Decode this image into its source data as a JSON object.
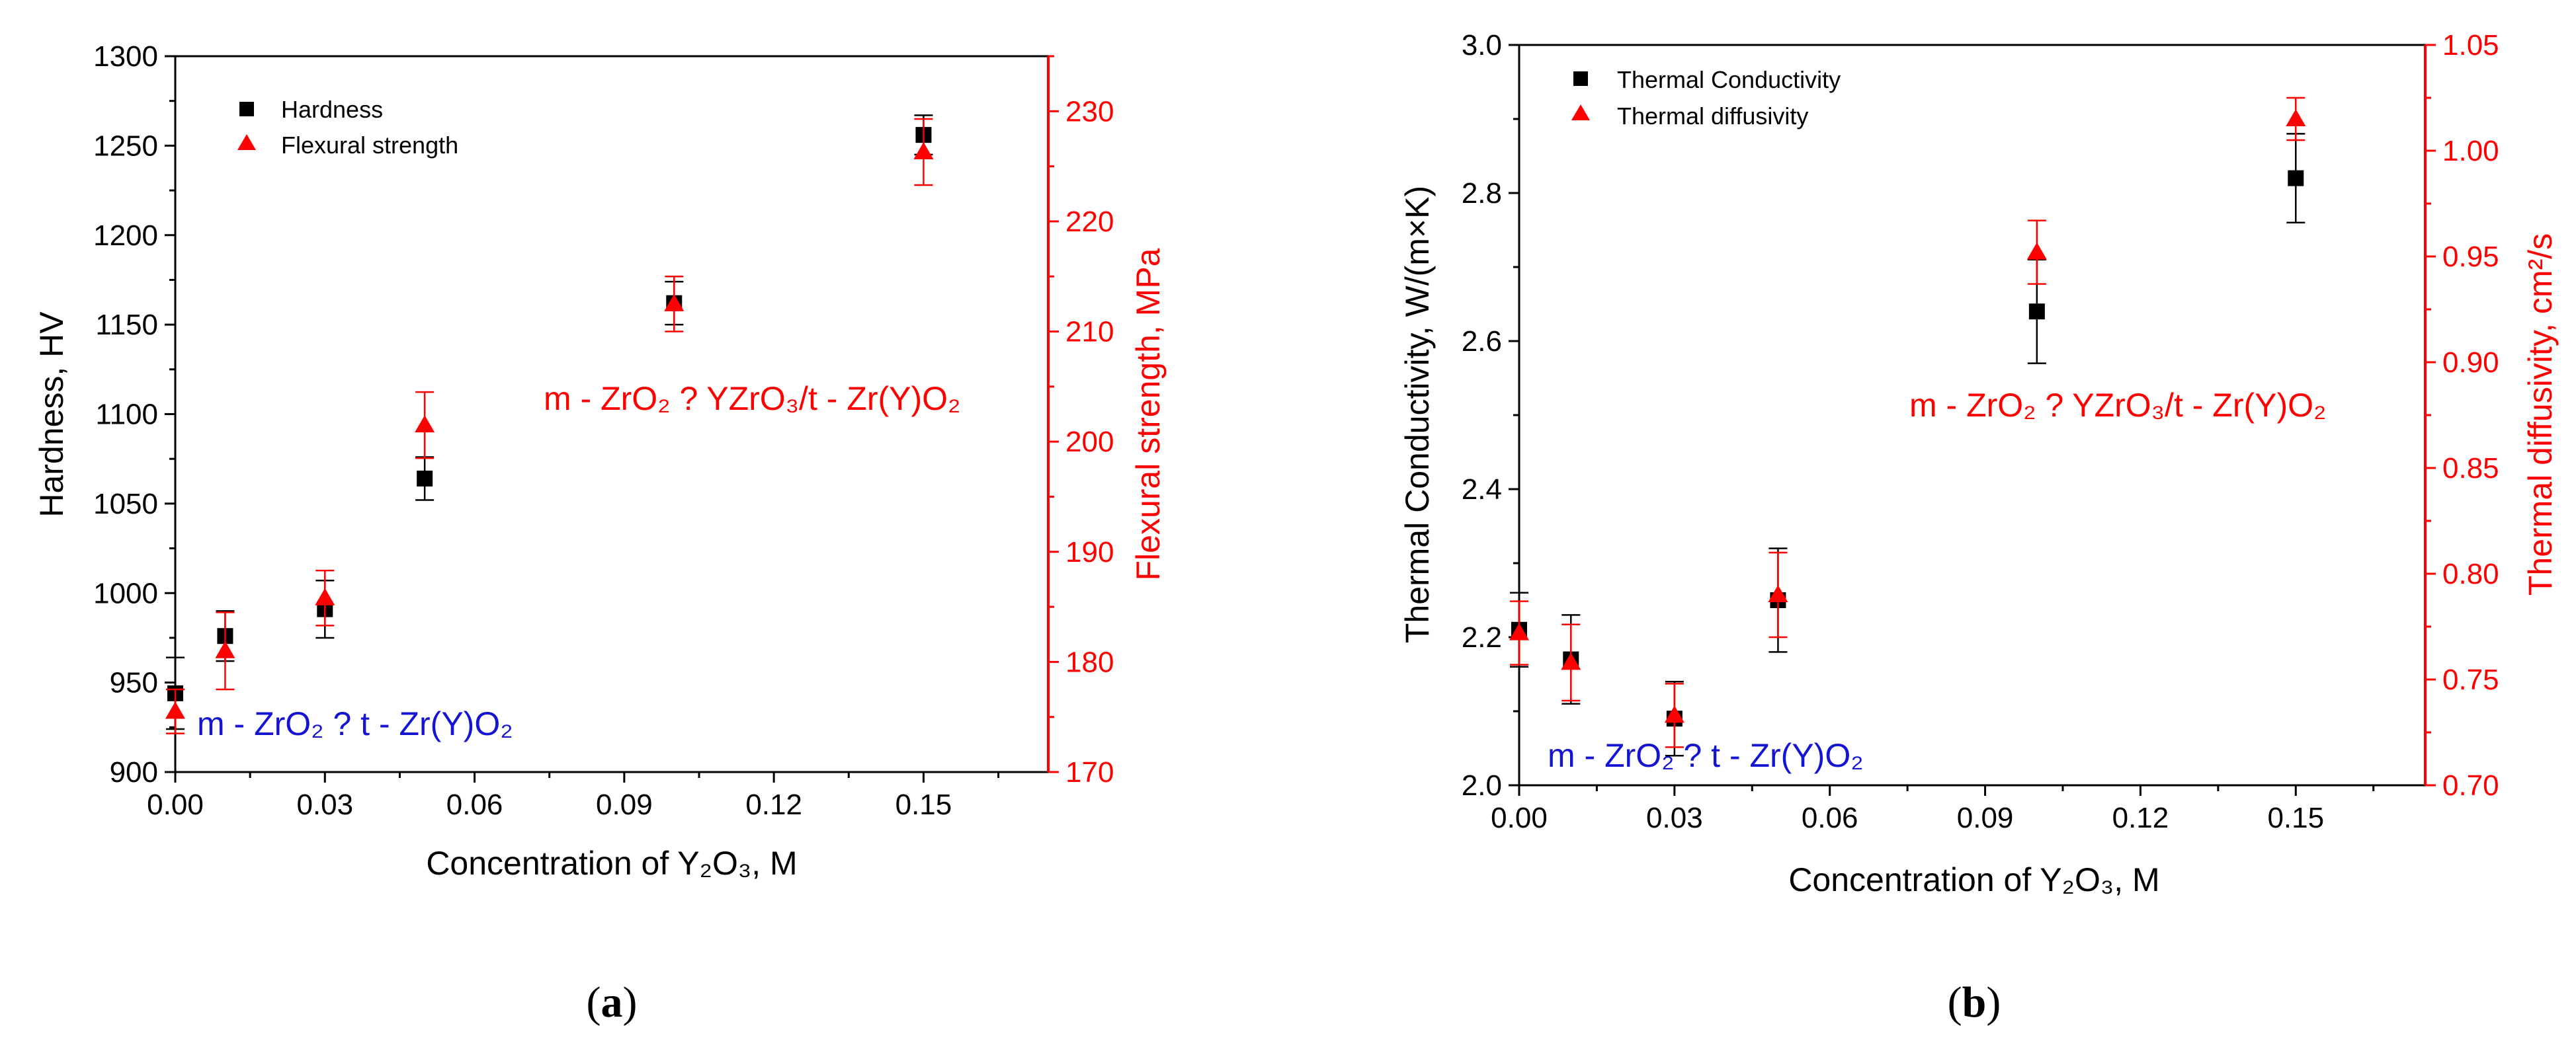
{
  "colors": {
    "left_axis": "#000000",
    "right_axis": "#ff0000",
    "annotation_blue": "#1414d2",
    "annotation_red": "#ff0000"
  },
  "chart_data": [
    {
      "type": "scatter",
      "panel_label": "(a)",
      "xlabel": "Concentration of Y₂O₃, M",
      "xlim": [
        0,
        0.175
      ],
      "xticks": [
        0,
        0.03,
        0.06,
        0.09,
        0.12,
        0.15
      ],
      "xtick_labels": [
        "0.00",
        "0.03",
        "0.06",
        "0.09",
        "0.12",
        "0.15"
      ],
      "ylabel": "Hardness, HV",
      "ylim": [
        900,
        1300
      ],
      "yticks": [
        900,
        950,
        1000,
        1050,
        1100,
        1150,
        1200,
        1250,
        1300
      ],
      "y2label": "Flexural strength, MPa",
      "y2lim": [
        170,
        235
      ],
      "y2ticks": [
        170,
        180,
        190,
        200,
        210,
        220,
        230
      ],
      "legend_position": "top-left",
      "series": [
        {
          "name": "Hardness",
          "axis": "left",
          "marker": "square",
          "color": "#000000",
          "x": [
            0,
            0.01,
            0.03,
            0.05,
            0.1,
            0.15
          ],
          "y": [
            944,
            976,
            991,
            1064,
            1162,
            1256
          ],
          "err": [
            20,
            14,
            16,
            12,
            12,
            11
          ]
        },
        {
          "name": "Flexural strength",
          "axis": "right",
          "marker": "triangle",
          "color": "#ff0000",
          "x": [
            0,
            0.01,
            0.03,
            0.05,
            0.1,
            0.15
          ],
          "y": [
            175.5,
            181,
            185.8,
            201.5,
            212.5,
            226.3
          ],
          "err": [
            2,
            3.5,
            2.5,
            3,
            2.5,
            3
          ]
        }
      ],
      "annotations": [
        {
          "text": "m - ZrO₂ ?  t - Zr(Y)O₂",
          "color": "blue"
        },
        {
          "text": "m - ZrO₂ ?  YZrO₃/t - Zr(Y)O₂",
          "color": "red"
        }
      ]
    },
    {
      "type": "scatter",
      "panel_label": "(b)",
      "xlabel": "Concentration of Y₂O₃, M",
      "xlim": [
        0,
        0.175
      ],
      "xticks": [
        0,
        0.03,
        0.06,
        0.09,
        0.12,
        0.15
      ],
      "xtick_labels": [
        "0.00",
        "0.03",
        "0.06",
        "0.09",
        "0.12",
        "0.15"
      ],
      "ylabel": "Thermal Conductivity, W/(m×K)",
      "ylim": [
        2.0,
        3.0
      ],
      "yticks": [
        2.0,
        2.2,
        2.4,
        2.6,
        2.8,
        3.0
      ],
      "ytick_labels": [
        "2.0",
        "2.2",
        "2.4",
        "2.6",
        "2.8",
        "3.0"
      ],
      "y2label": "Thermal diffusivity, cm²/s",
      "y2lim": [
        0.7,
        1.05
      ],
      "y2ticks": [
        0.7,
        0.75,
        0.8,
        0.85,
        0.9,
        0.95,
        1.0,
        1.05
      ],
      "y2tick_labels": [
        "0.70",
        "0.75",
        "0.80",
        "0.85",
        "0.90",
        "0.95",
        "1.00",
        "1.05"
      ],
      "legend_position": "top-left",
      "series": [
        {
          "name": "Thermal Conductivity",
          "axis": "left",
          "marker": "square",
          "color": "#000000",
          "x": [
            0,
            0.01,
            0.03,
            0.05,
            0.1,
            0.15
          ],
          "y": [
            2.21,
            2.17,
            2.09,
            2.25,
            2.64,
            2.82
          ],
          "err": [
            0.05,
            0.06,
            0.05,
            0.07,
            0.07,
            0.06
          ]
        },
        {
          "name": "Thermal diffusivity",
          "axis": "right",
          "marker": "triangle",
          "color": "#ff0000",
          "x": [
            0,
            0.01,
            0.03,
            0.05,
            0.1,
            0.15
          ],
          "y": [
            0.772,
            0.758,
            0.733,
            0.79,
            0.952,
            1.015
          ],
          "err": [
            0.015,
            0.018,
            0.015,
            0.02,
            0.015,
            0.01
          ]
        }
      ],
      "annotations": [
        {
          "text": "m - ZrO₂ ?  t - Zr(Y)O₂",
          "color": "blue"
        },
        {
          "text": "m - ZrO₂ ?  YZrO₃/t - Zr(Y)O₂",
          "color": "red"
        }
      ]
    }
  ]
}
